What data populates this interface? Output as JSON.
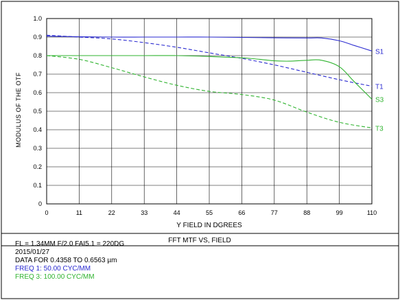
{
  "chart_data": {
    "type": "line",
    "title": "FFT  MTF  VS,  FIELD",
    "xlabel": "Y  FIELD IN DGREES",
    "ylabel": "MODULUS  OF  THE  OTF",
    "xlim": [
      0,
      110
    ],
    "ylim": [
      0,
      1.0
    ],
    "xticks": [
      "0",
      "11",
      "22",
      "33",
      "44",
      "55",
      "66",
      "77",
      "88",
      "99",
      "110"
    ],
    "yticks": [
      "0",
      "0.1",
      "0.2",
      "0.3",
      "0.4",
      "0.5",
      "0.6",
      "0.7",
      "0.8",
      "0.9",
      "1.0"
    ],
    "grid": true,
    "series": [
      {
        "name": "S1",
        "color": "#2a2ad0",
        "dash": false,
        "x": [
          0,
          11,
          22,
          33,
          44,
          55,
          66,
          77,
          88,
          93,
          99,
          104,
          110
        ],
        "y": [
          0.905,
          0.902,
          0.9,
          0.9,
          0.9,
          0.9,
          0.898,
          0.896,
          0.895,
          0.895,
          0.88,
          0.855,
          0.825
        ]
      },
      {
        "name": "T1",
        "color": "#2a2ad0",
        "dash": true,
        "x": [
          0,
          11,
          22,
          33,
          44,
          55,
          66,
          77,
          88,
          99,
          110
        ],
        "y": [
          0.91,
          0.9,
          0.89,
          0.87,
          0.845,
          0.815,
          0.785,
          0.75,
          0.71,
          0.67,
          0.635
        ]
      },
      {
        "name": "S3",
        "color": "#2fb32f",
        "dash": false,
        "x": [
          0,
          11,
          22,
          33,
          44,
          55,
          66,
          72,
          77,
          82,
          88,
          93,
          99,
          104,
          110
        ],
        "y": [
          0.8,
          0.8,
          0.8,
          0.8,
          0.8,
          0.795,
          0.788,
          0.78,
          0.772,
          0.77,
          0.775,
          0.775,
          0.74,
          0.66,
          0.565
        ]
      },
      {
        "name": "T3",
        "color": "#2fb32f",
        "dash": true,
        "x": [
          0,
          11,
          22,
          33,
          44,
          55,
          66,
          77,
          88,
          99,
          110
        ],
        "y": [
          0.8,
          0.78,
          0.735,
          0.685,
          0.64,
          0.607,
          0.59,
          0.56,
          0.495,
          0.44,
          0.41
        ]
      }
    ]
  },
  "info": {
    "line1": "FL = 1.34MM  F/2.0  FAI5.1 = 220DG",
    "line2": "2015/01/27",
    "line3": "DATA  FOR  0.4358  TO  0.6563  µm",
    "freq1": "FREQ  1:  50.00  CYC/MM",
    "freq3": "FREQ  3:  100.00 CYC/MM",
    "freq1_color": "#2a2ad0",
    "freq3_color": "#2fb32f"
  }
}
